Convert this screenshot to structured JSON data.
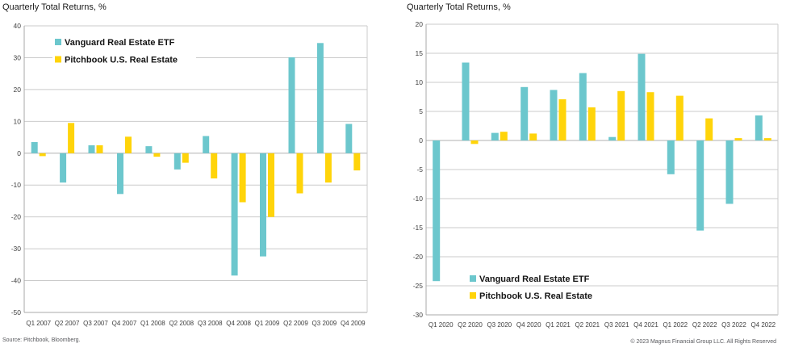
{
  "figure": {
    "footer": {
      "source": "Source: Pitchbook, Bloomberg.",
      "copyright": "© 2023 Magnus Financial Group LLC. All Rights Reserved"
    }
  },
  "colors": {
    "teal": "#6CC7CD",
    "yellow": "#FFD40A",
    "grid": "#CBCBCB",
    "zero": "#B0B0B0",
    "spine": "#A9A9A9"
  },
  "chart_data": [
    {
      "type": "bar",
      "title": "Quarterly Total Returns, %",
      "categories": [
        "Q1 2007",
        "Q2 2007",
        "Q3 2007",
        "Q4 2007",
        "Q1 2008",
        "Q2 2008",
        "Q3 2008",
        "Q4 2008",
        "Q1 2009",
        "Q2 2009",
        "Q3 2009",
        "Q4 2009"
      ],
      "series": [
        {
          "name": "Vanguard Real Estate ETF",
          "color_key": "teal",
          "values": [
            3.5,
            -9.2,
            2.5,
            -12.8,
            2.2,
            -5.1,
            5.4,
            -38.4,
            -32.4,
            30.1,
            34.6,
            9.2
          ]
        },
        {
          "name": "Pitchbook U.S. Real Estate",
          "color_key": "yellow",
          "values": [
            -0.9,
            9.5,
            2.5,
            5.2,
            -1.1,
            -3.0,
            -7.9,
            -15.4,
            -20.0,
            -12.6,
            -9.2,
            -5.4
          ]
        }
      ],
      "xlabel": "",
      "ylabel": "",
      "ylim": [
        -50,
        40
      ],
      "ytick_step": 10,
      "grid": true,
      "legend_position": "inside-top-left"
    },
    {
      "type": "bar",
      "title": "Quarterly Total Returns, %",
      "categories": [
        "Q1 2020",
        "Q2 2020",
        "Q3 2020",
        "Q4 2020",
        "Q1 2021",
        "Q2 2021",
        "Q3 2021",
        "Q4 2021",
        "Q1 2022",
        "Q2 2022",
        "Q3 2022",
        "Q4 2022"
      ],
      "series": [
        {
          "name": "Vanguard Real Estate ETF",
          "color_key": "teal",
          "values": [
            -24.2,
            13.4,
            1.3,
            9.2,
            8.7,
            11.6,
            0.6,
            14.9,
            -5.8,
            -15.5,
            -10.9,
            4.3
          ]
        },
        {
          "name": "Pitchbook U.S. Real Estate",
          "color_key": "yellow",
          "values": [
            0,
            -0.6,
            1.5,
            1.2,
            7.1,
            5.7,
            8.5,
            8.3,
            7.7,
            3.8,
            0.4,
            0.4
          ]
        }
      ],
      "xlabel": "",
      "ylabel": "",
      "ylim": [
        -30,
        20
      ],
      "ytick_step": 5,
      "grid": true,
      "legend_position": "inside-bottom-left"
    }
  ]
}
